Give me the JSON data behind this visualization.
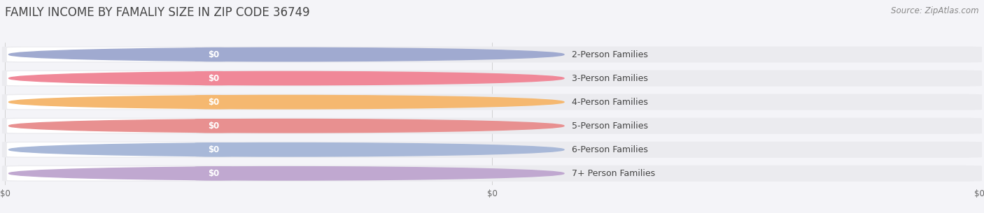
{
  "title": "FAMILY INCOME BY FAMALIY SIZE IN ZIP CODE 36749",
  "source": "Source: ZipAtlas.com",
  "categories": [
    "2-Person Families",
    "3-Person Families",
    "4-Person Families",
    "5-Person Families",
    "6-Person Families",
    "7+ Person Families"
  ],
  "values": [
    0,
    0,
    0,
    0,
    0,
    0
  ],
  "bar_colors": [
    "#a0aad0",
    "#f08898",
    "#f5b870",
    "#e89090",
    "#a8b8d8",
    "#c0a8d0"
  ],
  "bar_bg_color": "#e8e8ee",
  "label_bg_color": "#ffffff",
  "value_label": "$0",
  "bg_color": "#f4f4f8",
  "title_color": "#444444",
  "source_color": "#888888",
  "tick_label_color": "#666666",
  "grid_color": "#cccccc",
  "row_bg_color": "#ebebef",
  "title_fontsize": 12,
  "source_fontsize": 8.5,
  "label_fontsize": 9,
  "value_fontsize": 8.5,
  "tick_fontsize": 8.5
}
